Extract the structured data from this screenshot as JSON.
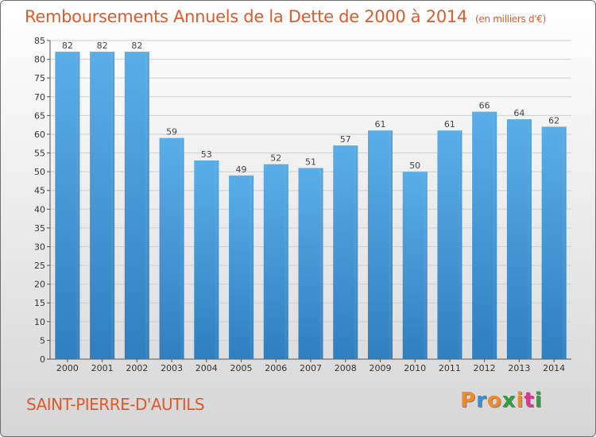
{
  "header": {
    "title": "Remboursements Annuels de la Dette de 2000 à 2014",
    "subtitle": "(en milliers d'€)"
  },
  "footer": {
    "city": "SAINT-PIERRE-D'AUTILS",
    "logo_letters": [
      "P",
      "r",
      "o",
      "x",
      "i",
      "t",
      "i"
    ],
    "logo_colors": [
      "#f08a2a",
      "#3a8fd0",
      "#f08a2a",
      "#2e9e3e",
      "#f08a2a",
      "#d63a8f",
      "#2e9e3e"
    ]
  },
  "chart_data": {
    "type": "bar",
    "categories": [
      "2000",
      "2001",
      "2002",
      "2003",
      "2004",
      "2005",
      "2006",
      "2007",
      "2008",
      "2009",
      "2010",
      "2011",
      "2012",
      "2013",
      "2014"
    ],
    "values": [
      82,
      82,
      82,
      59,
      53,
      49,
      52,
      51,
      57,
      61,
      50,
      61,
      66,
      64,
      62
    ],
    "ylim": [
      0,
      85
    ],
    "yticks": [
      0,
      5,
      10,
      15,
      20,
      25,
      30,
      35,
      40,
      45,
      50,
      55,
      60,
      65,
      70,
      75,
      80,
      85
    ],
    "grid": true,
    "bar_color_top": "#5aaee8",
    "bar_color_bottom": "#2f7fc0"
  }
}
